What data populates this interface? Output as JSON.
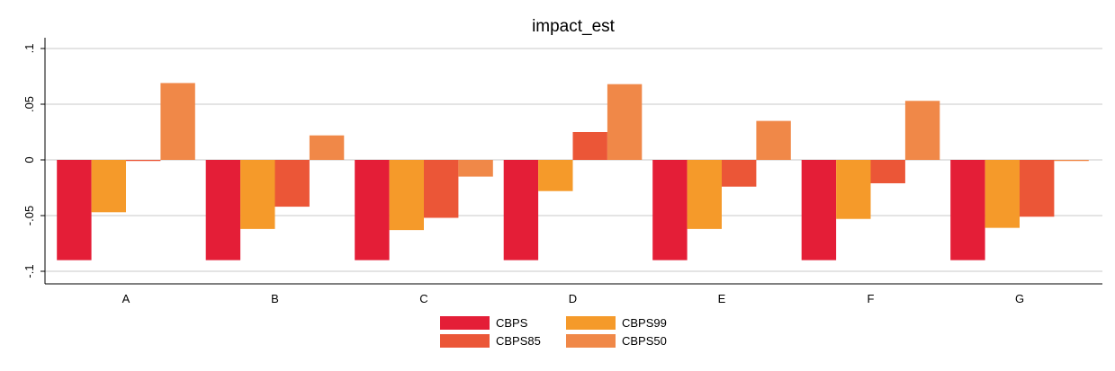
{
  "chart_data": {
    "type": "bar",
    "title": "impact_est",
    "xlabel": "",
    "ylabel": "",
    "categories": [
      "A",
      "B",
      "C",
      "D",
      "E",
      "F",
      "G"
    ],
    "ylim": [
      -0.1,
      0.1
    ],
    "yticks": [
      {
        "value": 0.1,
        "label": ".1"
      },
      {
        "value": 0.05,
        "label": ".05"
      },
      {
        "value": 0,
        "label": "0"
      },
      {
        "value": -0.05,
        "label": "-.05"
      },
      {
        "value": -0.1,
        "label": "-.1"
      }
    ],
    "grid": true,
    "legend_position": "bottom",
    "series": [
      {
        "name": "CBPS",
        "color": "#e41e37",
        "values": [
          -0.09,
          -0.09,
          -0.09,
          -0.09,
          -0.09,
          -0.09,
          -0.09
        ]
      },
      {
        "name": "CBPS99",
        "color": "#f59a2a",
        "values": [
          -0.047,
          -0.062,
          -0.063,
          -0.028,
          -0.062,
          -0.053,
          -0.061
        ]
      },
      {
        "name": "CBPS85",
        "color": "#eb5637",
        "values": [
          -0.001,
          -0.042,
          -0.052,
          0.025,
          -0.024,
          -0.021,
          -0.051
        ]
      },
      {
        "name": "CBPS50",
        "color": "#f08848",
        "values": [
          0.069,
          0.022,
          -0.015,
          0.068,
          0.035,
          0.053,
          -0.001
        ]
      }
    ],
    "legend_order": [
      "CBPS",
      "CBPS99",
      "CBPS85",
      "CBPS50"
    ]
  }
}
